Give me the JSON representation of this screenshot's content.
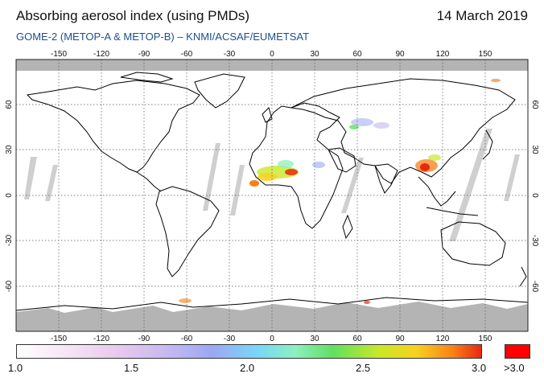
{
  "header": {
    "title": "Absorbing aerosol index (using PMDs)",
    "date": "14 March 2019",
    "subtitle": "GOME-2 (METOP-A & METOP-B)  –  KNMI/ACSAF/EUMETSAT"
  },
  "map": {
    "lon_ticks": [
      "-150",
      "-120",
      "-90",
      "-60",
      "-30",
      "0",
      "30",
      "60",
      "90",
      "120",
      "150"
    ],
    "lat_ticks": [
      "60",
      "30",
      "0",
      "-30",
      "-60"
    ],
    "projection": "equirectangular",
    "grid": "dotted"
  },
  "colorbar": {
    "labels": [
      "1.0",
      "1.5",
      "2.0",
      "2.5",
      "3.0"
    ],
    "max_label": ">3.0",
    "colors": {
      "low": "#ffffff",
      "mid": "#78d8f8",
      "high": "#e82810",
      "overflow": "#ff0000"
    }
  },
  "colors": {
    "no_data": "#b4b4b4",
    "coast": "#000000",
    "subtitle": "#1f4e8c"
  }
}
